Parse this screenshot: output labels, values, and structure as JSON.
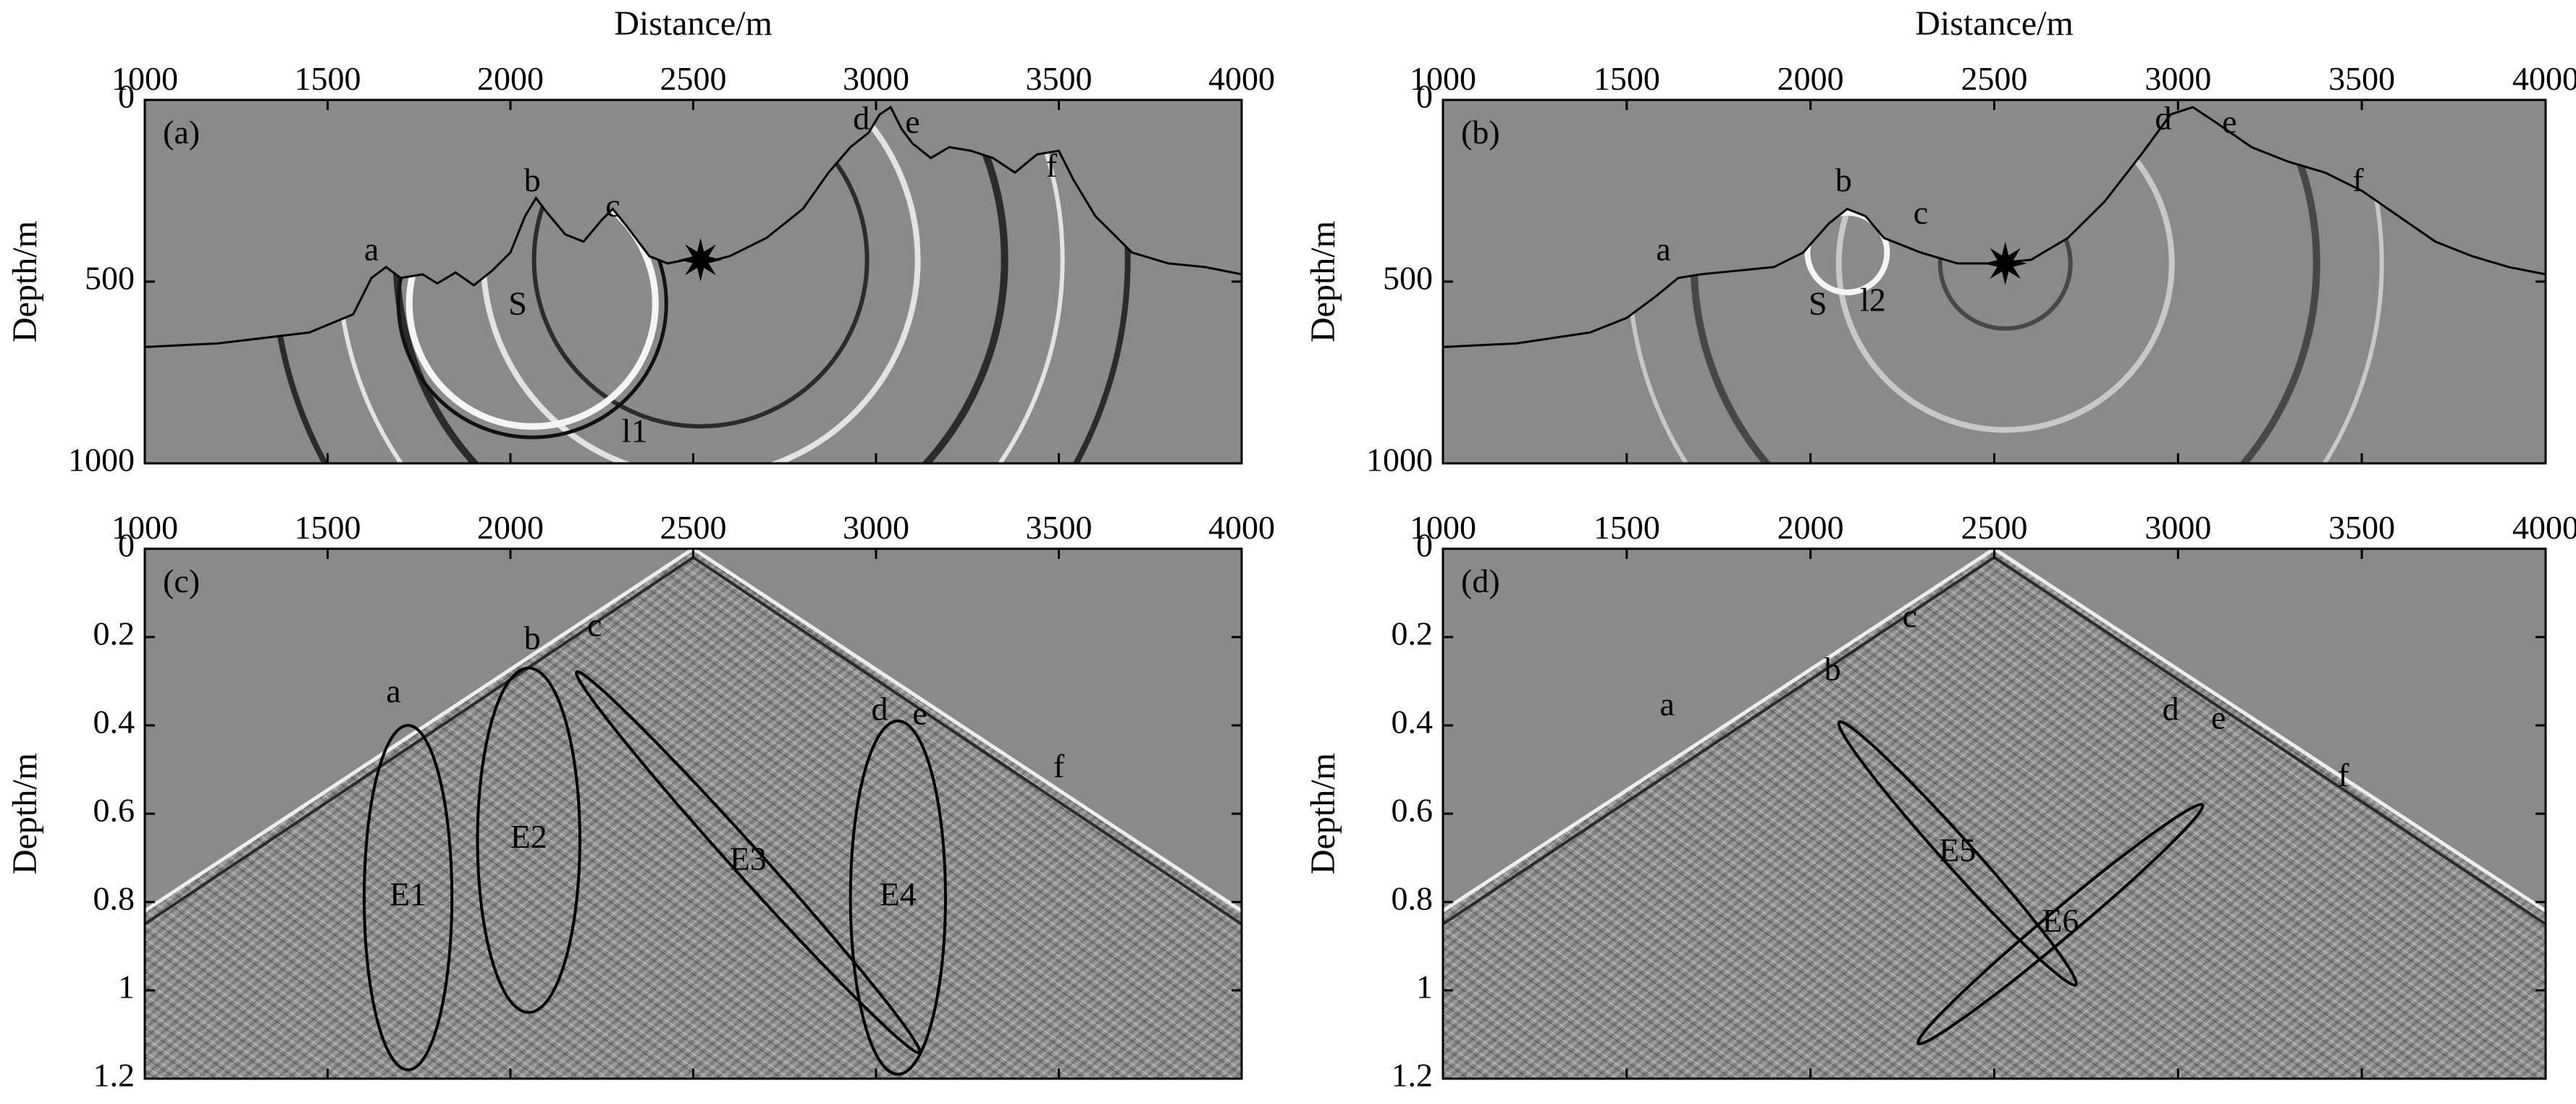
{
  "chart_data": [
    {
      "panel_label": "(a)",
      "type": "heatmap",
      "xlabel": "Distance/m",
      "ylabel": "Depth/m",
      "xlim": [
        1000,
        4000
      ],
      "ylim": [
        1000,
        0
      ],
      "x_ticks": [
        "1000",
        "1500",
        "2000",
        "2500",
        "3000",
        "3500",
        "4000"
      ],
      "y_ticks": [
        "0",
        "500",
        "1000"
      ],
      "surface": {
        "x": [
          1000,
          1200,
          1450,
          1570,
          1620,
          1660,
          1700,
          1760,
          1800,
          1850,
          1900,
          1950,
          2000,
          2040,
          2070,
          2100,
          2150,
          2200,
          2250,
          2280,
          2320,
          2380,
          2430,
          2480,
          2520,
          2600,
          2700,
          2800,
          2870,
          2930,
          2980,
          3010,
          3040,
          3070,
          3100,
          3150,
          3200,
          3260,
          3320,
          3380,
          3440,
          3500,
          3540,
          3600,
          3700,
          3800,
          3900,
          4000
        ],
        "depth": [
          680,
          670,
          640,
          590,
          490,
          460,
          490,
          480,
          505,
          475,
          510,
          470,
          420,
          320,
          270,
          310,
          370,
          390,
          330,
          300,
          350,
          430,
          450,
          440,
          450,
          430,
          380,
          300,
          200,
          130,
          90,
          40,
          20,
          80,
          120,
          160,
          130,
          140,
          160,
          200,
          150,
          140,
          220,
          320,
          420,
          450,
          460,
          480
        ]
      },
      "source": {
        "x": 2520,
        "depth": 440
      },
      "annotations": [
        {
          "text": "a",
          "x": 1620,
          "depth": 420
        },
        {
          "text": "b",
          "x": 2060,
          "depth": 230
        },
        {
          "text": "c",
          "x": 2280,
          "depth": 300
        },
        {
          "text": "d",
          "x": 2960,
          "depth": 60
        },
        {
          "text": "e",
          "x": 3100,
          "depth": 70
        },
        {
          "text": "f",
          "x": 3480,
          "depth": 190
        },
        {
          "text": "S",
          "x": 2020,
          "depth": 570
        },
        {
          "text": "l1",
          "x": 2340,
          "depth": 920
        }
      ]
    },
    {
      "panel_label": "(b)",
      "type": "heatmap",
      "xlabel": "Distance/m",
      "ylabel": "Depth/m",
      "xlim": [
        1000,
        4000
      ],
      "ylim": [
        1000,
        0
      ],
      "x_ticks": [
        "1000",
        "1500",
        "2000",
        "2500",
        "3000",
        "3500",
        "4000"
      ],
      "y_ticks": [
        "0",
        "500",
        "1000"
      ],
      "surface": {
        "x": [
          1000,
          1200,
          1400,
          1500,
          1580,
          1640,
          1700,
          1800,
          1900,
          1980,
          2050,
          2100,
          2150,
          2200,
          2300,
          2400,
          2500,
          2600,
          2700,
          2800,
          2900,
          2980,
          3040,
          3100,
          3200,
          3300,
          3400,
          3500,
          3600,
          3700,
          3800,
          3900,
          4000
        ],
        "depth": [
          680,
          670,
          640,
          600,
          540,
          490,
          480,
          470,
          460,
          420,
          340,
          300,
          320,
          380,
          420,
          450,
          450,
          440,
          380,
          280,
          150,
          40,
          20,
          60,
          130,
          170,
          200,
          250,
          320,
          390,
          430,
          460,
          480
        ]
      },
      "source": {
        "x": 2530,
        "depth": 450
      },
      "annotations": [
        {
          "text": "a",
          "x": 1600,
          "depth": 420
        },
        {
          "text": "b",
          "x": 2090,
          "depth": 230
        },
        {
          "text": "c",
          "x": 2300,
          "depth": 320
        },
        {
          "text": "d",
          "x": 2960,
          "depth": 60
        },
        {
          "text": "e",
          "x": 3140,
          "depth": 70
        },
        {
          "text": "f",
          "x": 3490,
          "depth": 230
        },
        {
          "text": "S",
          "x": 2020,
          "depth": 570
        },
        {
          "text": "l2",
          "x": 2170,
          "depth": 560
        }
      ]
    },
    {
      "panel_label": "(c)",
      "type": "heatmap",
      "xlabel": "",
      "ylabel": "Depth/m",
      "xlim": [
        1000,
        4000
      ],
      "ylim": [
        1.2,
        0
      ],
      "x_ticks": [
        "1000",
        "1500",
        "2000",
        "2500",
        "3000",
        "3500",
        "4000"
      ],
      "y_ticks": [
        "0",
        "0.2",
        "0.4",
        "0.6",
        "0.8",
        "1",
        "1.2"
      ],
      "annotations": [
        {
          "text": "a",
          "x": 1680,
          "depth": 0.33
        },
        {
          "text": "b",
          "x": 2060,
          "depth": 0.21
        },
        {
          "text": "c",
          "x": 2230,
          "depth": 0.18
        },
        {
          "text": "d",
          "x": 3010,
          "depth": 0.37
        },
        {
          "text": "e",
          "x": 3120,
          "depth": 0.38
        },
        {
          "text": "f",
          "x": 3500,
          "depth": 0.5
        }
      ],
      "ellipses": [
        {
          "label": "E1",
          "cx": 1720,
          "cy": 0.79,
          "rx": 120,
          "ry": 0.39,
          "angle": 0
        },
        {
          "label": "E2",
          "cx": 2050,
          "cy": 0.66,
          "rx": 140,
          "ry": 0.39,
          "angle": 0
        },
        {
          "label": "E3",
          "cx": 2650,
          "cy": 0.71,
          "rx": 40,
          "ry": 0.58,
          "angle": -42
        },
        {
          "label": "E4",
          "cx": 3060,
          "cy": 0.79,
          "rx": 130,
          "ry": 0.4,
          "angle": 0
        }
      ]
    },
    {
      "panel_label": "(d)",
      "type": "heatmap",
      "xlabel": "",
      "ylabel": "Depth/m",
      "xlim": [
        1000,
        4000
      ],
      "ylim": [
        1.2,
        0
      ],
      "x_ticks": [
        "1000",
        "1500",
        "2000",
        "2500",
        "3000",
        "3500",
        "4000"
      ],
      "y_ticks": [
        "0",
        "0.2",
        "0.4",
        "0.6",
        "0.8",
        "1",
        "1.2"
      ],
      "annotations": [
        {
          "text": "a",
          "x": 1610,
          "depth": 0.36
        },
        {
          "text": "b",
          "x": 2060,
          "depth": 0.28
        },
        {
          "text": "c",
          "x": 2270,
          "depth": 0.16
        },
        {
          "text": "d",
          "x": 2980,
          "depth": 0.37
        },
        {
          "text": "e",
          "x": 3110,
          "depth": 0.39
        },
        {
          "text": "f",
          "x": 3450,
          "depth": 0.52
        }
      ],
      "ellipses": [
        {
          "label": "E5",
          "cx": 2400,
          "cy": 0.69,
          "rx": 40,
          "ry": 0.4,
          "angle": -42
        },
        {
          "label": "E6",
          "cx": 2680,
          "cy": 0.85,
          "rx": 38,
          "ry": 0.42,
          "angle": 50
        }
      ]
    }
  ]
}
